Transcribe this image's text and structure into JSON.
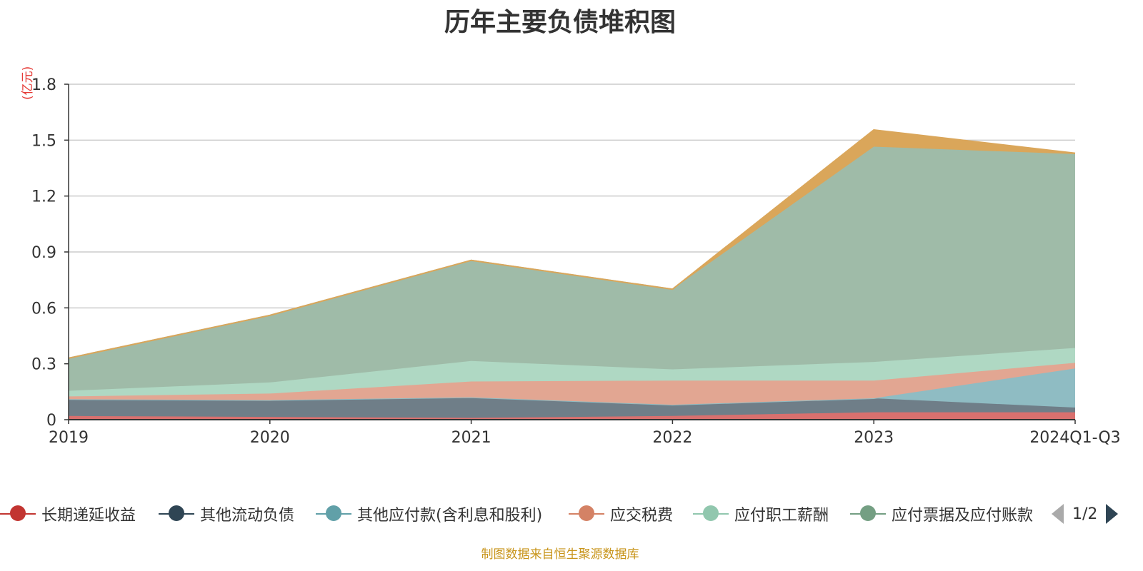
{
  "title": "历年主要负债堆积图",
  "unit_label": "(亿元)",
  "source": "制图数据来自恒生聚源数据库",
  "pager": {
    "text": "1/2"
  },
  "chart_data": {
    "type": "area",
    "stacked": true,
    "title": "历年主要负债堆积图",
    "ylabel": "(亿元)",
    "ylim": [
      0,
      1.8
    ],
    "yticks": [
      "0",
      "0.3",
      "0.6",
      "0.9",
      "1.2",
      "1.5",
      "1.8"
    ],
    "grid": true,
    "legend_position": "bottom",
    "categories": [
      "2019",
      "2020",
      "2021",
      "2022",
      "2023",
      "2024Q1-Q3"
    ],
    "series": [
      {
        "name": "长期递延收益",
        "color": "#c23531",
        "fill": "#d9706e",
        "values": [
          0.02,
          0.015,
          0.01,
          0.02,
          0.04,
          0.04
        ]
      },
      {
        "name": "其他流动负债",
        "color": "#2f4554",
        "fill": "#6f7e88",
        "values": [
          0.09,
          0.09,
          0.11,
          0.06,
          0.075,
          0.025
        ]
      },
      {
        "name": "其他应付款(含利息和股利)",
        "color": "#61a0a8",
        "fill": "#8fbcc3",
        "values": [
          0.0,
          0.0,
          0.0,
          0.0,
          0.0,
          0.21
        ]
      },
      {
        "name": "应交税费",
        "color": "#d48265",
        "fill": "#e2a692",
        "values": [
          0.015,
          0.035,
          0.085,
          0.13,
          0.095,
          0.03
        ]
      },
      {
        "name": "应付职工薪酬",
        "color": "#91c7ae",
        "fill": "#afd8c3",
        "values": [
          0.03,
          0.06,
          0.11,
          0.06,
          0.1,
          0.08
        ]
      },
      {
        "name": "应付票据及应付账款",
        "color": "#749f83",
        "fill": "#9fbba8",
        "values": [
          0.175,
          0.36,
          0.54,
          0.43,
          1.155,
          1.04
        ]
      },
      {
        "name": "",
        "color": "#ca8622",
        "fill": "#daa65a",
        "values": [
          0.0,
          0.0,
          0.0,
          0.0,
          0.09,
          0.005
        ]
      }
    ]
  }
}
